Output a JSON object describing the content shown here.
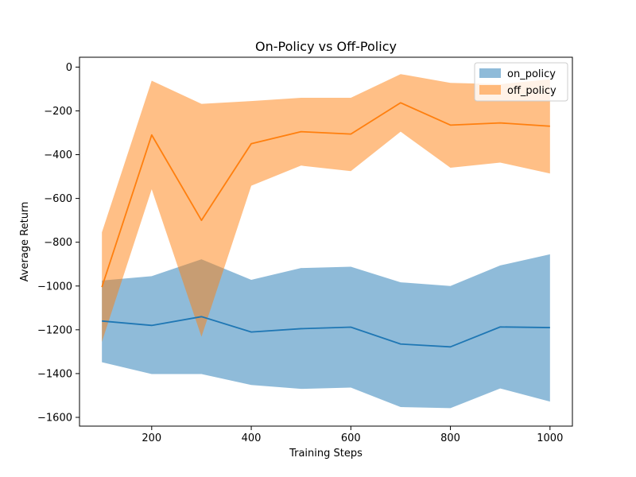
{
  "chart_data": {
    "type": "line",
    "title": "On-Policy vs Off-Policy",
    "xlabel": "Training Steps",
    "ylabel": "Average Return",
    "xlim": [
      55,
      1045
    ],
    "ylim": [
      -1640,
      45
    ],
    "xticks": [
      200,
      400,
      600,
      800,
      1000
    ],
    "yticks": [
      0,
      -200,
      -400,
      -600,
      -800,
      -1000,
      -1200,
      -1400,
      -1600
    ],
    "grid": false,
    "legend": "top-right",
    "x": [
      100,
      200,
      300,
      400,
      500,
      600,
      700,
      800,
      900,
      1000
    ],
    "series": [
      {
        "name": "on_policy",
        "color": "#1f77b4",
        "band_color": "#1f77b4",
        "mean": [
          -1160,
          -1180,
          -1140,
          -1210,
          -1195,
          -1188,
          -1265,
          -1278,
          -1187,
          -1190
        ],
        "upper": [
          -975,
          -955,
          -878,
          -972,
          -918,
          -912,
          -983,
          -1000,
          -906,
          -855
        ],
        "lower": [
          -1348,
          -1402,
          -1402,
          -1452,
          -1470,
          -1464,
          -1553,
          -1558,
          -1468,
          -1528
        ]
      },
      {
        "name": "off_policy",
        "color": "#ff7f0e",
        "band_color": "#ff7f0e",
        "mean": [
          -1005,
          -310,
          -700,
          -350,
          -295,
          -306,
          -163,
          -265,
          -255,
          -270
        ],
        "upper": [
          -755,
          -62,
          -168,
          -155,
          -140,
          -140,
          -32,
          -72,
          -78,
          -56
        ],
        "lower": [
          -1255,
          -558,
          -1232,
          -542,
          -450,
          -475,
          -295,
          -460,
          -436,
          -486
        ]
      }
    ]
  }
}
